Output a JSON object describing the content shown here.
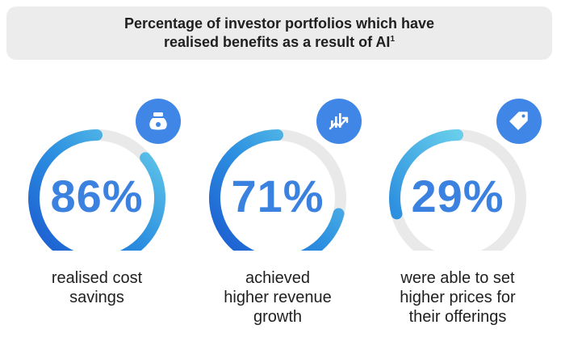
{
  "header": {
    "title_line1": "Percentage of investor portfolios which have",
    "title_line2": "realised benefits as a result of AI",
    "footnote": "1"
  },
  "chart_data": {
    "type": "donut",
    "title": "Percentage of investor portfolios which have realised benefits as a result of AI",
    "unit": "%",
    "items": [
      {
        "value": 86,
        "value_label": "86%",
        "caption_lines": [
          "realised cost",
          "savings"
        ],
        "icon": "money-bag-icon"
      },
      {
        "value": 71,
        "value_label": "71%",
        "caption_lines": [
          "achieved",
          "higher revenue",
          "growth"
        ],
        "icon": "growth-chart-icon"
      },
      {
        "value": 29,
        "value_label": "29%",
        "caption_lines": [
          "were able to set",
          "higher prices for",
          "their offerings"
        ],
        "icon": "price-tag-icon"
      }
    ]
  },
  "colors": {
    "track": "#e9e9e9",
    "ring_dark": "#1a56cf",
    "ring_mid": "#2c8fe0",
    "ring_light": "#67cdea",
    "badge": "#3f86e6",
    "percent_text": "#3b82e0"
  }
}
